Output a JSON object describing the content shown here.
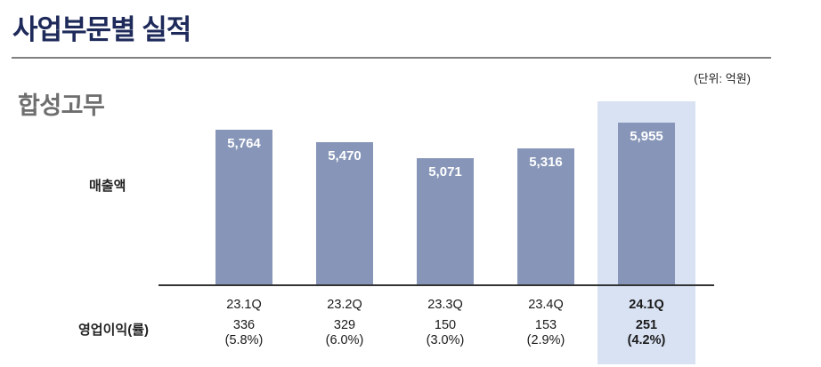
{
  "header": {
    "title": "사업부문별 실적",
    "unit_label": "(단위: 억원)"
  },
  "section": {
    "title": "합성고무"
  },
  "chart_data": {
    "type": "bar",
    "title": "합성고무",
    "unit": "억원",
    "categories": [
      "23.1Q",
      "23.2Q",
      "23.3Q",
      "23.4Q",
      "24.1Q"
    ],
    "series": [
      {
        "name": "매출액",
        "values": [
          5764,
          5470,
          5071,
          5316,
          5955
        ],
        "labels": [
          "5,764",
          "5,470",
          "5,071",
          "5,316",
          "5,955"
        ]
      }
    ],
    "operating_profit": {
      "label": "영업이익(률)",
      "values": [
        336,
        329,
        150,
        153,
        251
      ],
      "value_labels": [
        "336",
        "329",
        "150",
        "153",
        "251"
      ],
      "rate_labels": [
        "(5.8%)",
        "(6.0%)",
        "(3.0%)",
        "(2.9%)",
        "(4.2%)"
      ]
    },
    "ylabel": "매출액",
    "ylim": [
      2000,
      6100
    ],
    "grid": false,
    "legend": "none",
    "highlight_index": 4,
    "highlight_category": "24.1Q",
    "colors": {
      "bar": "#8796b8",
      "highlight_band": "#d8e2f3",
      "title": "#1e2a5a",
      "section_title": "#6e6e6e",
      "axis_line": "#333333",
      "rule": "#808080",
      "bar_value_text": "#ffffff",
      "label_text": "#1a1a1a"
    }
  }
}
